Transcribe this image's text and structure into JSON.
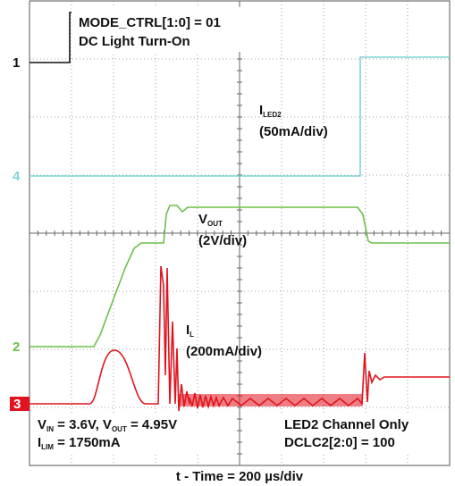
{
  "annotations": {
    "mode": "MODE_CTRL[1:0] = 01",
    "turn_on": "DC Light Turn-On",
    "iled2": {
      "symbol": "I",
      "sub": "LED2",
      "scale": "(50mA/div)"
    },
    "vout": {
      "symbol": "V",
      "sub": "OUT",
      "scale": "(2V/div)"
    },
    "il": {
      "symbol": "I",
      "sub": "L",
      "scale": "(200mA/div)"
    },
    "conditions": {
      "vin_symbol": "V",
      "vin_sub": "IN",
      "vin_text": " = 3.6V, V",
      "vout_sub": "OUT",
      "vout_text": " = 4.95V",
      "ilim_symbol": "I",
      "ilim_sub": "LIM",
      "ilim_text": " = 1750mA"
    },
    "channel": "LED2 Channel Only",
    "dclc": "DCLC2[2:0] = 100"
  },
  "x_label": "t - Time = 200 µs/div",
  "channels": [
    "1",
    "4",
    "2",
    "3"
  ]
}
